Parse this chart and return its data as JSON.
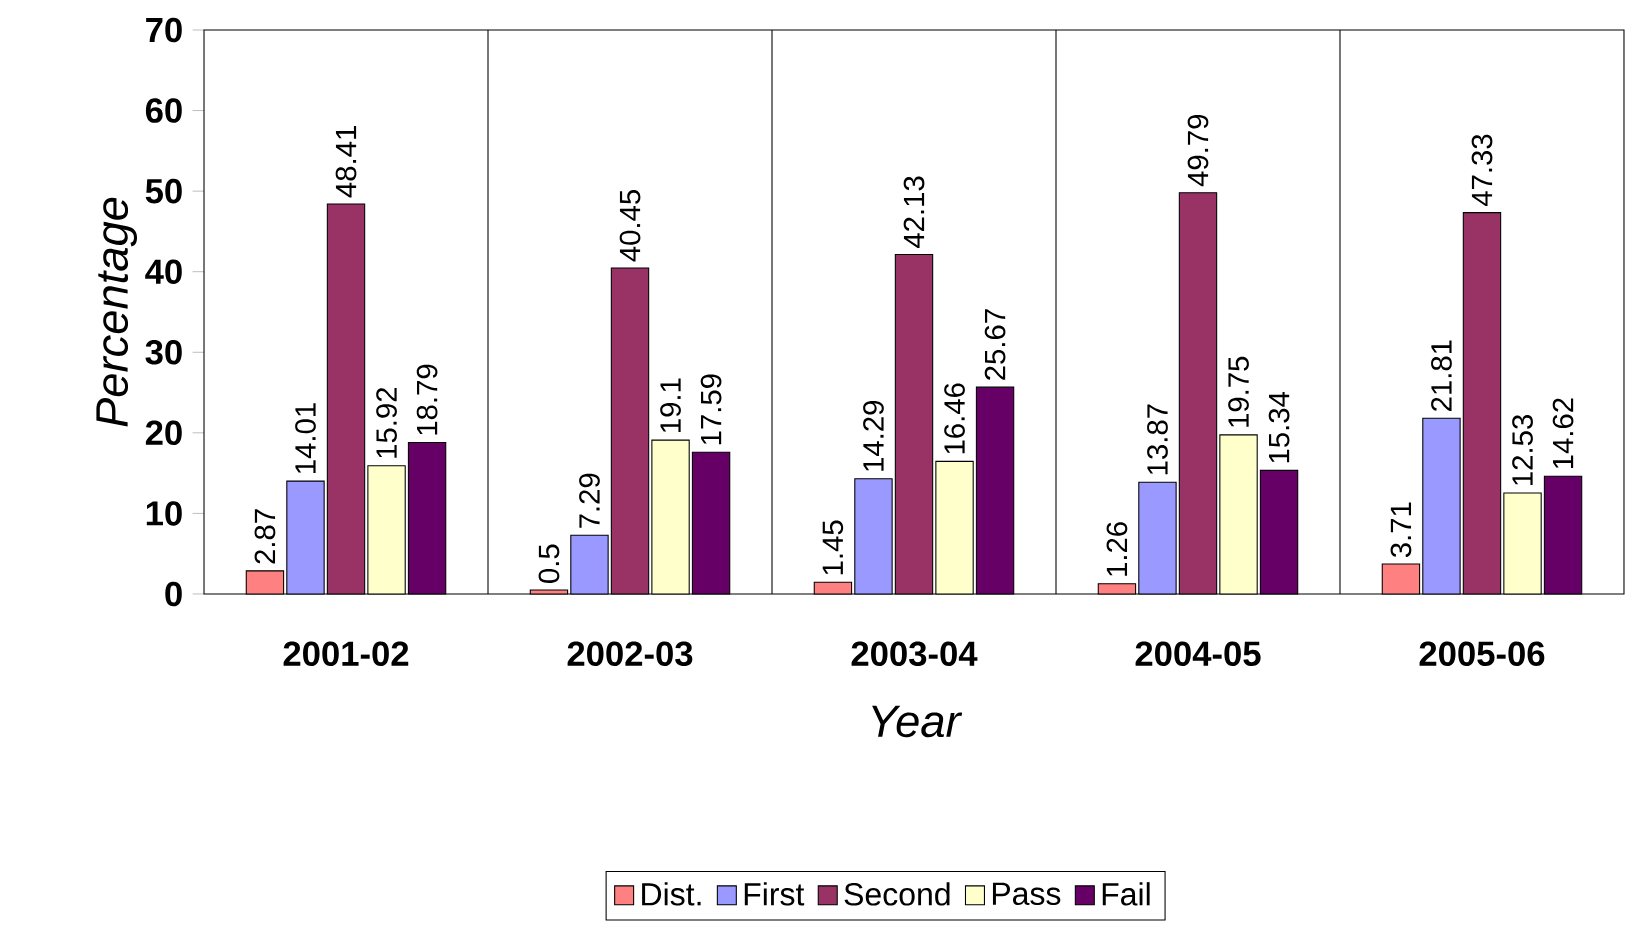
{
  "chart_data": {
    "type": "bar",
    "xlabel": "Year",
    "ylabel": "Percentage",
    "categories": [
      "2001-02",
      "2002-03",
      "2003-04",
      "2004-05",
      "2005-06"
    ],
    "series": [
      {
        "name": "Dist.",
        "color": "#ff8080",
        "values": [
          2.87,
          0.5,
          1.45,
          1.26,
          3.71
        ]
      },
      {
        "name": "First",
        "color": "#9999ff",
        "values": [
          14.01,
          7.29,
          14.29,
          13.87,
          21.81
        ]
      },
      {
        "name": "Second",
        "color": "#993366",
        "values": [
          48.41,
          40.45,
          42.13,
          49.79,
          47.33
        ]
      },
      {
        "name": "Pass",
        "color": "#ffffcc",
        "values": [
          15.92,
          19.1,
          16.46,
          19.75,
          12.53
        ]
      },
      {
        "name": "Fail",
        "color": "#660066",
        "values": [
          18.79,
          17.59,
          25.67,
          15.34,
          14.62
        ]
      }
    ],
    "ylim": [
      0,
      70
    ],
    "yticks": [
      0,
      10,
      20,
      30,
      40,
      50,
      60,
      70
    ],
    "data_labels": true,
    "grid": "x",
    "legend": "bottom"
  }
}
